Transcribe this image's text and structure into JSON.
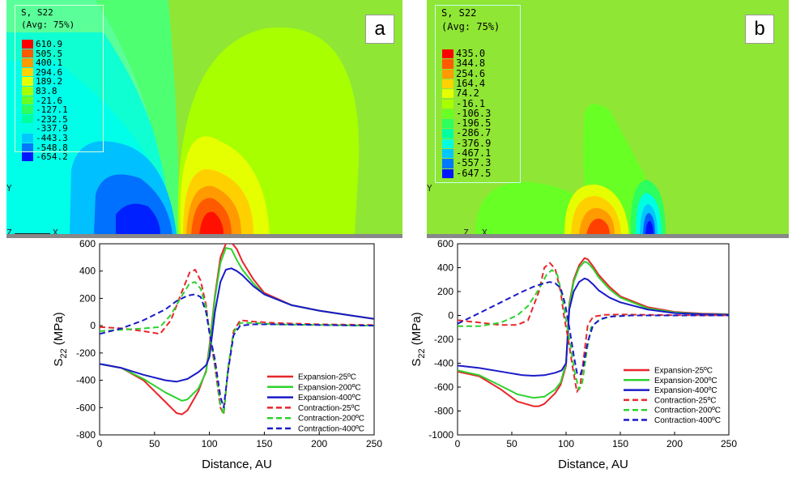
{
  "panels": [
    {
      "label": "a",
      "legend": {
        "title": "S, S22",
        "subtitle": "(Avg: 75%)",
        "values": [
          "610.9",
          "505.5",
          "400.1",
          "294.6",
          "189.2",
          "83.8",
          "-21.6",
          "-127.1",
          "-232.5",
          "-337.9",
          "-443.3",
          "-548.8",
          "-654.2"
        ],
        "colors": [
          "#ff0000",
          "#ff5a00",
          "#ff9a00",
          "#ffd200",
          "#e6ff00",
          "#a8ff00",
          "#68ff24",
          "#2cff5e",
          "#00ffa0",
          "#00ffe0",
          "#00c8ff",
          "#0078ff",
          "#0018ff"
        ]
      },
      "axes": {
        "y": "Y",
        "z": "Z",
        "x": "X"
      }
    },
    {
      "label": "b",
      "legend": {
        "title": "S, S22",
        "subtitle": "(Avg: 75%)",
        "values": [
          "435.0",
          "344.8",
          "254.6",
          "164.4",
          "74.2",
          "-16.1",
          "-106.3",
          "-196.5",
          "-286.7",
          "-376.9",
          "-467.1",
          "-557.3",
          "-647.5"
        ],
        "colors": [
          "#ff0000",
          "#ff5a00",
          "#ff9a00",
          "#ffd200",
          "#e6ff00",
          "#a8ff00",
          "#68ff24",
          "#2cff5e",
          "#00ffa0",
          "#00ffe0",
          "#00c8ff",
          "#0078ff",
          "#0018ff"
        ]
      },
      "axes": {
        "y": "Y",
        "z": "Z",
        "x": "X"
      }
    }
  ],
  "chart_data": [
    {
      "type": "line",
      "title": "",
      "xlabel": "Distance, AU",
      "ylabel_main": "S",
      "ylabel_sub": "22",
      "ylabel_unit": " (MPa)",
      "xlim": [
        0,
        250
      ],
      "ylim": [
        -800,
        600
      ],
      "xticks": [
        0,
        50,
        100,
        150,
        200,
        250
      ],
      "yticks": [
        -800,
        -600,
        -400,
        -200,
        0,
        200,
        400,
        600
      ],
      "grid": false,
      "legend_position": "bottom-right",
      "series": [
        {
          "name": "Expansion-25ºC",
          "color": "#e8262a",
          "dash": false,
          "x": [
            0,
            20,
            40,
            60,
            70,
            75,
            80,
            90,
            97,
            100,
            105,
            110,
            115,
            120,
            125,
            130,
            140,
            150,
            175,
            200,
            225,
            250
          ],
          "y": [
            -280,
            -310,
            -400,
            -560,
            -640,
            -650,
            -620,
            -480,
            -330,
            -150,
            220,
            500,
            600,
            610,
            560,
            470,
            340,
            240,
            150,
            110,
            80,
            50
          ]
        },
        {
          "name": "Expansion-200ºC",
          "color": "#2ed12e",
          "dash": false,
          "x": [
            0,
            20,
            40,
            60,
            75,
            80,
            90,
            97,
            100,
            105,
            110,
            115,
            120,
            125,
            130,
            140,
            150,
            175,
            200,
            225,
            250
          ],
          "y": [
            -280,
            -310,
            -390,
            -490,
            -550,
            -540,
            -460,
            -340,
            -170,
            200,
            460,
            570,
            560,
            480,
            410,
            310,
            230,
            150,
            110,
            80,
            50
          ]
        },
        {
          "name": "Expansion-400ºC",
          "color": "#1a1ac8",
          "dash": false,
          "x": [
            0,
            20,
            40,
            60,
            70,
            80,
            90,
            97,
            100,
            105,
            110,
            115,
            120,
            125,
            130,
            140,
            150,
            175,
            200,
            225,
            250
          ],
          "y": [
            -280,
            -310,
            -360,
            -400,
            -410,
            -390,
            -340,
            -290,
            -230,
            100,
            320,
            410,
            420,
            400,
            370,
            290,
            230,
            150,
            110,
            80,
            50
          ]
        },
        {
          "name": "Contraction-25ºC",
          "color": "#e8262a",
          "dash": true,
          "x": [
            0,
            20,
            40,
            55,
            65,
            75,
            82,
            87,
            92,
            97,
            100,
            105,
            110,
            113,
            117,
            122,
            128,
            140,
            160,
            200,
            250
          ],
          "y": [
            -10,
            -20,
            -40,
            -60,
            40,
            250,
            390,
            410,
            330,
            150,
            -50,
            -300,
            -600,
            -650,
            -320,
            -40,
            40,
            30,
            20,
            10,
            5
          ]
        },
        {
          "name": "Contraction-200ºC",
          "color": "#2ed12e",
          "dash": true,
          "x": [
            0,
            20,
            40,
            55,
            65,
            75,
            82,
            87,
            92,
            97,
            100,
            105,
            110,
            113,
            117,
            122,
            128,
            140,
            160,
            200,
            250
          ],
          "y": [
            -40,
            -30,
            -20,
            -10,
            80,
            220,
            310,
            320,
            270,
            130,
            -40,
            -280,
            -580,
            -650,
            -300,
            -50,
            20,
            20,
            10,
            5,
            0
          ]
        },
        {
          "name": "Contraction-400ºC",
          "color": "#1a1ac8",
          "dash": true,
          "x": [
            0,
            20,
            40,
            60,
            70,
            80,
            87,
            92,
            97,
            100,
            105,
            110,
            113,
            117,
            122,
            128,
            140,
            160,
            200,
            250
          ],
          "y": [
            -60,
            -20,
            40,
            120,
            180,
            220,
            230,
            210,
            100,
            -50,
            -250,
            -520,
            -600,
            -330,
            -70,
            0,
            10,
            10,
            5,
            0
          ]
        }
      ]
    },
    {
      "type": "line",
      "title": "",
      "xlabel": "Distance, AU",
      "ylabel_main": "S",
      "ylabel_sub": "22",
      "ylabel_unit": " (MPa)",
      "xlim": [
        0,
        250
      ],
      "ylim": [
        -1000,
        600
      ],
      "xticks": [
        0,
        50,
        100,
        150,
        200,
        250
      ],
      "yticks": [
        -1000,
        -800,
        -600,
        -400,
        -200,
        0,
        200,
        400,
        600
      ],
      "grid": false,
      "legend_position": "bottom-right",
      "series": [
        {
          "name": "Expansion-25ºC",
          "color": "#e8262a",
          "dash": false,
          "x": [
            0,
            20,
            40,
            55,
            70,
            75,
            80,
            90,
            95,
            100,
            103,
            107,
            112,
            117,
            120,
            125,
            130,
            140,
            150,
            175,
            200,
            225,
            250
          ],
          "y": [
            -470,
            -510,
            -620,
            -720,
            -760,
            -760,
            -740,
            -650,
            -580,
            -420,
            100,
            300,
            420,
            480,
            470,
            410,
            340,
            240,
            160,
            70,
            30,
            15,
            10
          ]
        },
        {
          "name": "Expansion-200ºC",
          "color": "#2ed12e",
          "dash": false,
          "x": [
            0,
            20,
            40,
            55,
            70,
            80,
            90,
            95,
            100,
            103,
            107,
            112,
            117,
            120,
            125,
            130,
            140,
            150,
            175,
            200,
            225,
            250
          ],
          "y": [
            -460,
            -500,
            -590,
            -660,
            -690,
            -680,
            -620,
            -560,
            -400,
            80,
            280,
            400,
            450,
            440,
            390,
            320,
            220,
            150,
            60,
            25,
            12,
            8
          ]
        },
        {
          "name": "Expansion-400ºC",
          "color": "#1a1ac8",
          "dash": false,
          "x": [
            0,
            20,
            40,
            60,
            70,
            80,
            90,
            96,
            100,
            103,
            107,
            112,
            117,
            120,
            125,
            130,
            140,
            150,
            175,
            200,
            225,
            250
          ],
          "y": [
            -420,
            -440,
            -470,
            -500,
            -505,
            -500,
            -480,
            -460,
            -400,
            50,
            200,
            280,
            310,
            300,
            260,
            210,
            150,
            110,
            50,
            20,
            10,
            5
          ]
        },
        {
          "name": "Contraction-25ºC",
          "color": "#e8262a",
          "dash": true,
          "x": [
            0,
            20,
            40,
            55,
            65,
            75,
            80,
            85,
            90,
            95,
            98,
            102,
            106,
            110,
            113,
            117,
            120,
            125,
            135,
            150,
            175,
            200,
            250
          ],
          "y": [
            -40,
            -60,
            -80,
            -80,
            -40,
            200,
            400,
            440,
            390,
            200,
            0,
            -200,
            -430,
            -640,
            -590,
            -300,
            -80,
            -10,
            5,
            8,
            5,
            3,
            0
          ]
        },
        {
          "name": "Contraction-200ºC",
          "color": "#2ed12e",
          "dash": true,
          "x": [
            0,
            20,
            40,
            55,
            65,
            75,
            82,
            87,
            92,
            96,
            100,
            104,
            108,
            112,
            115,
            119,
            123,
            130,
            140,
            160,
            200,
            250
          ],
          "y": [
            -90,
            -90,
            -60,
            0,
            80,
            220,
            340,
            380,
            340,
            180,
            -40,
            -250,
            -480,
            -620,
            -560,
            -300,
            -100,
            -40,
            -10,
            0,
            0,
            0
          ]
        },
        {
          "name": "Contraction-400ºC",
          "color": "#1a1ac8",
          "dash": true,
          "x": [
            0,
            20,
            40,
            60,
            70,
            80,
            85,
            90,
            95,
            99,
            103,
            107,
            110,
            113,
            116,
            120,
            125,
            132,
            140,
            160,
            200,
            250
          ],
          "y": [
            -70,
            20,
            110,
            200,
            240,
            270,
            280,
            270,
            230,
            100,
            -100,
            -330,
            -480,
            -500,
            -420,
            -220,
            -80,
            -30,
            -10,
            0,
            0,
            0
          ]
        }
      ]
    }
  ]
}
